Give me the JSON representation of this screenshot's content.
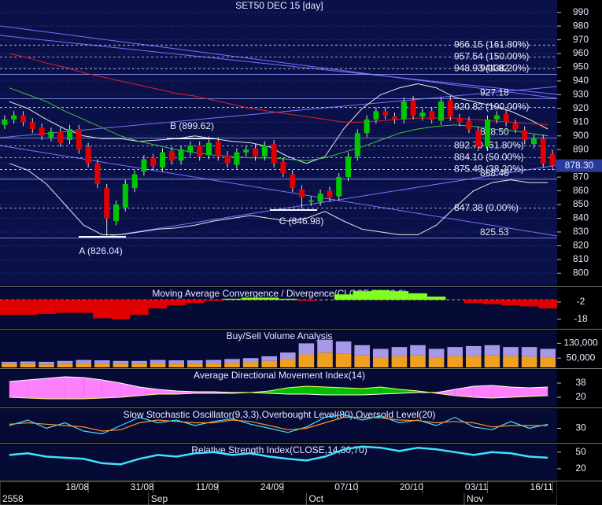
{
  "chart_data": [
    {
      "type": "candlestick",
      "title": "SET50 DEC 15   [day]",
      "categories": [
        null,
        null,
        null,
        null,
        null,
        null,
        null,
        null,
        null,
        "18/08",
        null,
        null,
        null,
        null,
        null,
        null,
        "31/08",
        null,
        null,
        null,
        null,
        null,
        null,
        "11/09",
        null,
        null,
        null,
        null,
        null,
        null,
        "24/09",
        null,
        null,
        null,
        null,
        null,
        null,
        null,
        "07/10",
        null,
        null,
        null,
        null,
        null,
        null,
        "20/10",
        null,
        null,
        null,
        null,
        null,
        null,
        "03/11",
        null,
        null,
        null,
        null,
        null,
        null,
        "16/11"
      ],
      "month_categories": [
        "2558",
        null,
        null,
        null,
        null,
        null,
        null,
        null,
        null,
        null,
        null,
        null,
        null,
        null,
        null,
        null,
        "Sep",
        null,
        null,
        null,
        null,
        null,
        null,
        null,
        null,
        null,
        null,
        null,
        null,
        null,
        null,
        null,
        null,
        "Oct",
        null,
        null,
        null,
        null,
        null,
        null,
        null,
        null,
        null,
        null,
        null,
        null,
        null,
        null,
        null,
        null,
        "Nov",
        null,
        null,
        null,
        null,
        null,
        null,
        null,
        null,
        null
      ],
      "open": [
        908,
        912,
        915,
        910,
        906,
        899,
        903,
        897,
        905,
        892,
        880,
        862,
        838,
        848,
        862,
        874,
        884,
        877,
        889,
        882,
        888,
        893,
        886,
        896,
        886,
        879,
        888,
        891,
        885,
        894,
        881,
        872,
        861,
        852,
        852,
        860,
        856,
        870,
        885,
        902,
        912,
        918,
        914,
        912,
        926,
        914,
        918,
        911,
        926,
        913,
        911,
        904,
        892,
        912,
        916,
        909,
        904,
        894,
        898,
        887
      ],
      "high": [
        915,
        918,
        918,
        913,
        909,
        906,
        906,
        908,
        908,
        895,
        883,
        865,
        853,
        868,
        875,
        886,
        887,
        891,
        892,
        893,
        896,
        896,
        899.62,
        899,
        889,
        891,
        893,
        894,
        896,
        897,
        884,
        875,
        864,
        856,
        861,
        863,
        873,
        888,
        905,
        915,
        921,
        921,
        917,
        928,
        929,
        920,
        921,
        928,
        929,
        916,
        914,
        907,
        915,
        918,
        919,
        912,
        907,
        901,
        901,
        890
      ],
      "low": [
        905,
        909,
        907,
        902,
        897,
        896,
        892,
        894,
        887,
        877,
        862,
        826.04,
        835,
        845,
        859,
        871,
        875,
        874,
        879,
        879,
        885,
        882,
        883,
        882,
        877,
        876,
        885,
        882,
        882,
        877,
        870,
        859,
        846.98,
        849,
        849,
        852,
        853,
        867,
        882,
        899,
        909,
        912,
        909,
        909,
        912,
        911,
        909,
        908,
        911,
        907,
        902,
        889,
        889,
        909,
        907,
        902,
        894,
        891,
        877,
        875
      ],
      "close": [
        912,
        915,
        910,
        905,
        900,
        903,
        895,
        905,
        890,
        880,
        865,
        840,
        850,
        865,
        872,
        883,
        878,
        888,
        882,
        890,
        893,
        885,
        895,
        885,
        880,
        888,
        890,
        885,
        893,
        880,
        873,
        862,
        855,
        853,
        858,
        855,
        870,
        885,
        902,
        912,
        918,
        915,
        912,
        925,
        915,
        917,
        912,
        925,
        914,
        910,
        905,
        892,
        912,
        915,
        910,
        905,
        897,
        898,
        880,
        878.3
      ],
      "up_color": "#00c800",
      "down_color": "#e00000",
      "ylim": [
        791,
        999
      ],
      "yticks": [
        800,
        810,
        820,
        830,
        840,
        850,
        860,
        870,
        880,
        890,
        900,
        910,
        920,
        930,
        940,
        950,
        960,
        970,
        980,
        990
      ],
      "grid": true,
      "overlays": [
        {
          "color": "#e8e8e8",
          "values": [
            925,
            920,
            912,
            905,
            900,
            898,
            898,
            896,
            897,
            898,
            900,
            898,
            896,
            895,
            892,
            885,
            880,
            885,
            905,
            920,
            930,
            935,
            938,
            935,
            928,
            925,
            922,
            918,
            912,
            905
          ]
        },
        {
          "color": "#e8e8e8",
          "values": [
            880,
            875,
            865,
            850,
            835,
            828,
            828,
            830,
            832,
            833,
            835,
            838,
            840,
            842,
            840,
            838,
            840,
            845,
            838,
            832,
            830,
            828,
            828,
            835,
            848,
            860,
            866,
            868,
            866,
            866
          ]
        },
        {
          "color": "#e02020",
          "values": [
            960,
            957,
            953,
            950,
            946,
            943,
            940,
            937,
            934,
            931,
            929,
            926,
            923,
            920,
            918,
            916,
            914,
            912,
            910,
            910,
            911,
            912,
            913,
            913,
            913,
            912,
            911,
            910,
            909,
            908
          ]
        },
        {
          "color": "#40c040",
          "values": [
            935,
            930,
            925,
            918,
            912,
            906,
            900,
            896,
            893,
            890,
            888,
            886,
            885,
            884,
            884,
            883,
            882,
            884,
            888,
            892,
            897,
            902,
            905,
            907,
            908,
            907,
            905,
            904,
            902,
            900
          ]
        }
      ],
      "fib_levels": [
        {
          "value": 966.15,
          "label": "966.15 (161.80%)"
        },
        {
          "value": 957.54,
          "label": "957.54 (150.00%)"
        },
        {
          "value": 948.93,
          "label": "948.93 (138.20%)"
        },
        {
          "value": 920.82,
          "label": "920.82 (100.00%)"
        },
        {
          "value": 892.7,
          "label": "892.70 (61.80%)"
        },
        {
          "value": 884.1,
          "label": "884.10 (50.00%)"
        },
        {
          "value": 875.49,
          "label": "875.49 (38.20%)"
        },
        {
          "value": 847.38,
          "label": "847.38 (0.00%)"
        }
      ],
      "levels": [
        944.82,
        927.18,
        {
          "value": 898.5,
          "label": "898.50"
        },
        868.46,
        825.53
      ],
      "annotations": [
        "A (826.04)",
        "B (899.62)",
        "C (846.98)"
      ],
      "last_price": {
        "value": 878.3,
        "label": "878.30"
      }
    },
    {
      "type": "bar",
      "title": "Moving Average Convergence / Divergence(CLOSE,26,12,9)",
      "values": [
        -14,
        -14,
        -13,
        -12,
        -12,
        -17,
        -18,
        -14,
        -8,
        -5,
        -3,
        -1,
        1,
        2,
        2,
        1,
        -1,
        0,
        5,
        8,
        9,
        8,
        6,
        3,
        0,
        -3,
        -4,
        -5,
        -6,
        -8
      ],
      "pos_color": "#80ff20",
      "neg_color": "#e00000",
      "ylim": [
        -26,
        11
      ],
      "yticks": [
        -2,
        -18
      ]
    },
    {
      "type": "stacked_bar",
      "title": "Buy/Sell Volume Analysis",
      "series": [
        {
          "color": "#f0a020",
          "values": [
            18000,
            18000,
            16000,
            20000,
            22000,
            20000,
            18000,
            20000,
            22000,
            20000,
            20000,
            22000,
            25000,
            28000,
            35000,
            45000,
            70000,
            80000,
            75000,
            65000,
            55000,
            60000,
            65000,
            55000,
            60000,
            60000,
            65000,
            60000,
            58000,
            55000
          ]
        },
        {
          "color": "#a898e8",
          "values": [
            12000,
            14000,
            14000,
            15000,
            18000,
            18000,
            17000,
            15000,
            18000,
            18000,
            18000,
            18000,
            20000,
            22000,
            25000,
            35000,
            60000,
            70000,
            65000,
            55000,
            45000,
            50000,
            55000,
            45000,
            50000,
            55000,
            55000,
            50000,
            52000,
            45000
          ]
        }
      ],
      "ylim": [
        0,
        200000
      ],
      "yticks": [
        {
          "value": 130000,
          "label": "130,000"
        },
        {
          "value": 50000,
          "label": "50,000"
        }
      ]
    },
    {
      "type": "band",
      "title": "Average Directional Movement Index(14)",
      "series": [
        {
          "color": "#ffffff",
          "values": [
            40,
            42,
            44,
            46,
            45,
            42,
            38,
            33,
            30,
            28,
            27,
            27,
            26,
            26,
            25,
            24,
            24,
            23,
            23,
            23,
            24,
            25,
            26,
            26,
            30,
            34,
            35,
            33,
            32,
            33
          ]
        },
        {
          "color": "#ffff60",
          "values": [
            20,
            19,
            18,
            18,
            18,
            19,
            20,
            22,
            24,
            24,
            25,
            25,
            25,
            26,
            28,
            32,
            34,
            33,
            32,
            31,
            33,
            30,
            28,
            25,
            22,
            20,
            19,
            20,
            21,
            22
          ]
        }
      ],
      "above_color": "#ff80ff",
      "below_color": "#00c000",
      "ylim": [
        8,
        55
      ],
      "yticks": [
        38,
        20
      ]
    },
    {
      "type": "line",
      "title": "Slow Stochastic Oscillator(9,3,3),Overbought Level(80),Oversold Level(20)",
      "series": [
        {
          "color": "#40e0ff",
          "values": [
            40,
            60,
            30,
            50,
            20,
            10,
            40,
            70,
            50,
            60,
            40,
            55,
            65,
            45,
            30,
            15,
            35,
            70,
            80,
            60,
            75,
            50,
            60,
            40,
            70,
            35,
            25,
            55,
            30,
            45
          ]
        },
        {
          "color": "#ff9020",
          "values": [
            45,
            50,
            45,
            40,
            35,
            20,
            25,
            50,
            60,
            55,
            50,
            50,
            60,
            55,
            40,
            25,
            30,
            50,
            70,
            70,
            68,
            60,
            58,
            50,
            55,
            50,
            35,
            40,
            40,
            40
          ]
        }
      ],
      "ylim": [
        -20,
        100
      ],
      "yticks": [
        30
      ]
    },
    {
      "type": "line",
      "title": "Relative Strength Index(CLOSE,14,30,70)",
      "series": [
        {
          "color": "#40e0ff",
          "values": [
            45,
            48,
            42,
            40,
            38,
            30,
            28,
            38,
            45,
            42,
            48,
            50,
            45,
            48,
            42,
            38,
            35,
            42,
            55,
            60,
            58,
            52,
            58,
            55,
            50,
            45,
            50,
            48,
            42,
            40
          ]
        }
      ],
      "ylim": [
        0,
        64
      ],
      "yticks": [
        50,
        20
      ]
    }
  ]
}
